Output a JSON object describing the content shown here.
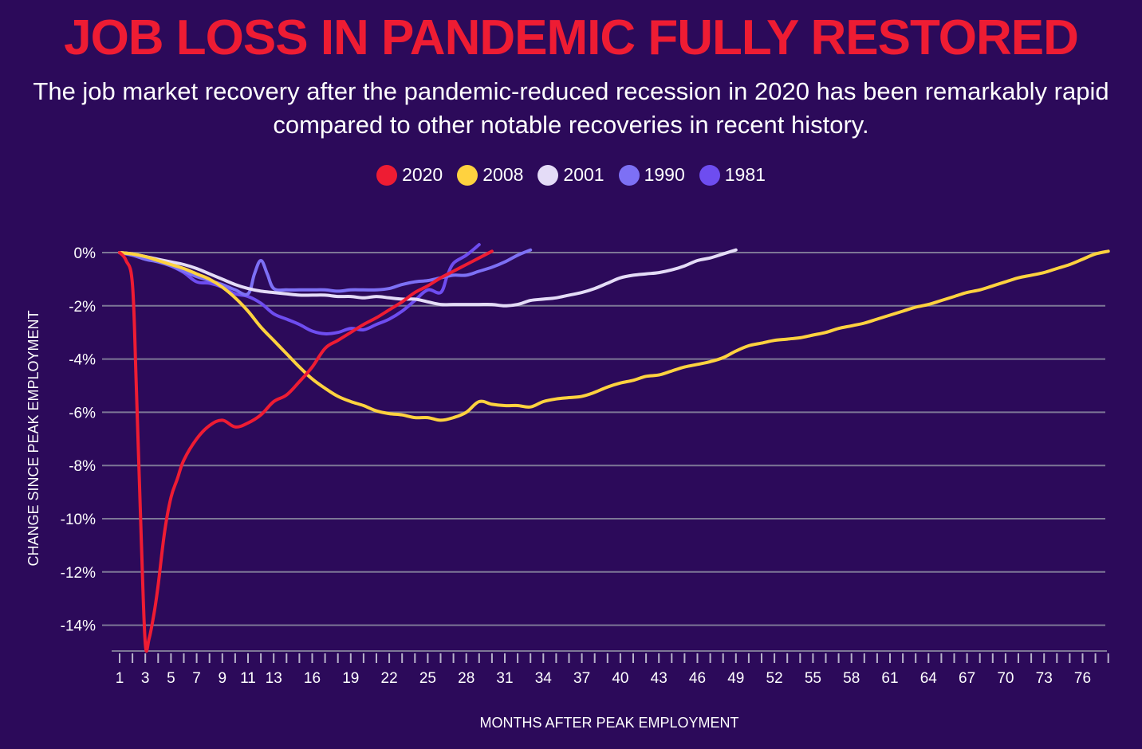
{
  "title": "JOB LOSS IN PANDEMIC FULLY RESTORED",
  "subtitle": "The job market recovery after the pandemic-reduced recession in 2020 has been remarkably rapid compared to other notable recoveries in recent history.",
  "chart_data": {
    "type": "line",
    "title": "JOB LOSS IN PANDEMIC FULLY RESTORED",
    "subtitle": "The job market recovery after the pandemic-reduced recession in 2020 has been remarkably rapid compared to other notable recoveries in recent history.",
    "xlabel": "MONTHS AFTER PEAK EMPLOYMENT",
    "ylabel": "CHANGE SINCE PEAK EMPLOYMENT",
    "xlim": [
      1,
      78
    ],
    "ylim": [
      -15,
      0
    ],
    "xticks": [
      1,
      3,
      5,
      7,
      9,
      11,
      13,
      16,
      19,
      22,
      25,
      28,
      31,
      34,
      37,
      40,
      43,
      46,
      49,
      52,
      55,
      58,
      61,
      64,
      67,
      70,
      73,
      76
    ],
    "xtick_labels": [
      "1",
      "3",
      "5",
      "7",
      "9",
      "11",
      "13",
      "16",
      "19",
      "22",
      "25",
      "28",
      "31",
      "34",
      "37",
      "40",
      "43",
      "46",
      "49",
      "52",
      "55",
      "58",
      "61",
      "64",
      "67",
      "70",
      "73",
      "76"
    ],
    "yticks": [
      0,
      -2,
      -4,
      -6,
      -8,
      -10,
      -12,
      -14
    ],
    "ytick_labels": [
      "0%",
      "-2%",
      "-4%",
      "-6%",
      "-8%",
      "-10%",
      "-12%",
      "-14%"
    ],
    "grid": true,
    "legend_position": "top-center",
    "series": [
      {
        "name": "2020",
        "color": "#ee1c33",
        "x": [
          1,
          1.5,
          2,
          2.3,
          2.7,
          3,
          3.3,
          3.7,
          4,
          4.5,
          5,
          5.5,
          6,
          7,
          8,
          9,
          10,
          11,
          12,
          13,
          14,
          15,
          16,
          17,
          18,
          19,
          20,
          21,
          22,
          23,
          24,
          25,
          26,
          27,
          28,
          29,
          30
        ],
        "y": [
          0,
          -0.3,
          -1.2,
          -5,
          -11,
          -14.7,
          -14.5,
          -13.5,
          -12.5,
          -10.5,
          -9.2,
          -8.5,
          -7.8,
          -7.0,
          -6.5,
          -6.3,
          -6.55,
          -6.4,
          -6.1,
          -5.6,
          -5.35,
          -4.85,
          -4.3,
          -3.6,
          -3.3,
          -3.0,
          -2.7,
          -2.45,
          -2.15,
          -1.85,
          -1.5,
          -1.25,
          -0.95,
          -0.7,
          -0.45,
          -0.2,
          0.05
        ]
      },
      {
        "name": "2008",
        "color": "#ffd23f",
        "x": [
          1,
          2,
          3,
          4,
          5,
          6,
          7,
          8,
          9,
          10,
          11,
          12,
          13,
          14,
          15,
          16,
          17,
          18,
          19,
          20,
          21,
          22,
          23,
          24,
          25,
          26,
          27,
          28,
          29,
          30,
          31,
          32,
          33,
          34,
          35,
          36,
          37,
          38,
          39,
          40,
          41,
          42,
          43,
          44,
          45,
          46,
          47,
          48,
          49,
          50,
          51,
          52,
          53,
          54,
          55,
          56,
          57,
          58,
          59,
          60,
          61,
          62,
          63,
          64,
          65,
          66,
          67,
          68,
          69,
          70,
          71,
          72,
          73,
          74,
          75,
          76,
          77,
          78
        ],
        "y": [
          0,
          -0.05,
          -0.15,
          -0.3,
          -0.45,
          -0.6,
          -0.8,
          -1.0,
          -1.3,
          -1.7,
          -2.2,
          -2.8,
          -3.3,
          -3.8,
          -4.3,
          -4.75,
          -5.1,
          -5.4,
          -5.6,
          -5.75,
          -5.95,
          -6.05,
          -6.1,
          -6.2,
          -6.2,
          -6.3,
          -6.2,
          -6.0,
          -5.6,
          -5.7,
          -5.75,
          -5.75,
          -5.8,
          -5.6,
          -5.5,
          -5.45,
          -5.4,
          -5.25,
          -5.05,
          -4.9,
          -4.8,
          -4.65,
          -4.6,
          -4.45,
          -4.3,
          -4.2,
          -4.1,
          -3.95,
          -3.7,
          -3.5,
          -3.4,
          -3.3,
          -3.25,
          -3.2,
          -3.1,
          -3.0,
          -2.85,
          -2.75,
          -2.65,
          -2.5,
          -2.35,
          -2.2,
          -2.05,
          -1.95,
          -1.8,
          -1.65,
          -1.5,
          -1.4,
          -1.25,
          -1.1,
          -0.95,
          -0.85,
          -0.75,
          -0.6,
          -0.45,
          -0.25,
          -0.05,
          0.05
        ]
      },
      {
        "name": "2001",
        "color": "#e4dcf7",
        "x": [
          1,
          2,
          3,
          4,
          5,
          6,
          7,
          8,
          9,
          10,
          11,
          12,
          13,
          14,
          15,
          16,
          17,
          18,
          19,
          20,
          21,
          22,
          23,
          24,
          25,
          26,
          27,
          28,
          29,
          30,
          31,
          32,
          33,
          34,
          35,
          36,
          37,
          38,
          39,
          40,
          41,
          42,
          43,
          44,
          45,
          46,
          47,
          48,
          49
        ],
        "y": [
          0,
          -0.05,
          -0.15,
          -0.25,
          -0.35,
          -0.45,
          -0.6,
          -0.8,
          -1.0,
          -1.2,
          -1.35,
          -1.45,
          -1.5,
          -1.55,
          -1.6,
          -1.6,
          -1.6,
          -1.65,
          -1.65,
          -1.7,
          -1.65,
          -1.7,
          -1.75,
          -1.75,
          -1.85,
          -1.95,
          -1.95,
          -1.95,
          -1.95,
          -1.95,
          -2.0,
          -1.95,
          -1.8,
          -1.75,
          -1.7,
          -1.6,
          -1.5,
          -1.35,
          -1.15,
          -0.95,
          -0.85,
          -0.8,
          -0.75,
          -0.65,
          -0.5,
          -0.3,
          -0.2,
          -0.05,
          0.1
        ]
      },
      {
        "name": "1990",
        "color": "#7d70f5",
        "x": [
          1,
          2,
          3,
          4,
          5,
          6,
          7,
          8,
          9,
          10,
          11,
          11.5,
          12,
          12.5,
          13,
          14,
          15,
          16,
          17,
          18,
          19,
          20,
          21,
          22,
          23,
          24,
          25,
          26,
          27,
          28,
          29,
          30,
          31,
          32,
          33
        ],
        "y": [
          0,
          -0.1,
          -0.25,
          -0.35,
          -0.5,
          -0.7,
          -0.9,
          -1.05,
          -1.2,
          -1.4,
          -1.55,
          -0.8,
          -0.3,
          -0.8,
          -1.35,
          -1.4,
          -1.4,
          -1.4,
          -1.4,
          -1.45,
          -1.4,
          -1.4,
          -1.4,
          -1.35,
          -1.2,
          -1.1,
          -1.05,
          -0.95,
          -0.85,
          -0.85,
          -0.7,
          -0.55,
          -0.35,
          -0.1,
          0.1
        ]
      },
      {
        "name": "1981",
        "color": "#6e4df0",
        "x": [
          1,
          2,
          3,
          4,
          5,
          6,
          7,
          8,
          9,
          10,
          11,
          12,
          13,
          14,
          15,
          16,
          17,
          18,
          19,
          20,
          21,
          22,
          23,
          24,
          25,
          26,
          26.5,
          27,
          28,
          29
        ],
        "y": [
          0,
          -0.05,
          -0.2,
          -0.3,
          -0.5,
          -0.75,
          -1.1,
          -1.15,
          -1.3,
          -1.55,
          -1.65,
          -1.9,
          -2.3,
          -2.5,
          -2.7,
          -2.95,
          -3.05,
          -3.0,
          -2.85,
          -2.9,
          -2.7,
          -2.5,
          -2.2,
          -1.8,
          -1.4,
          -1.5,
          -0.9,
          -0.4,
          -0.1,
          0.3
        ]
      }
    ]
  }
}
